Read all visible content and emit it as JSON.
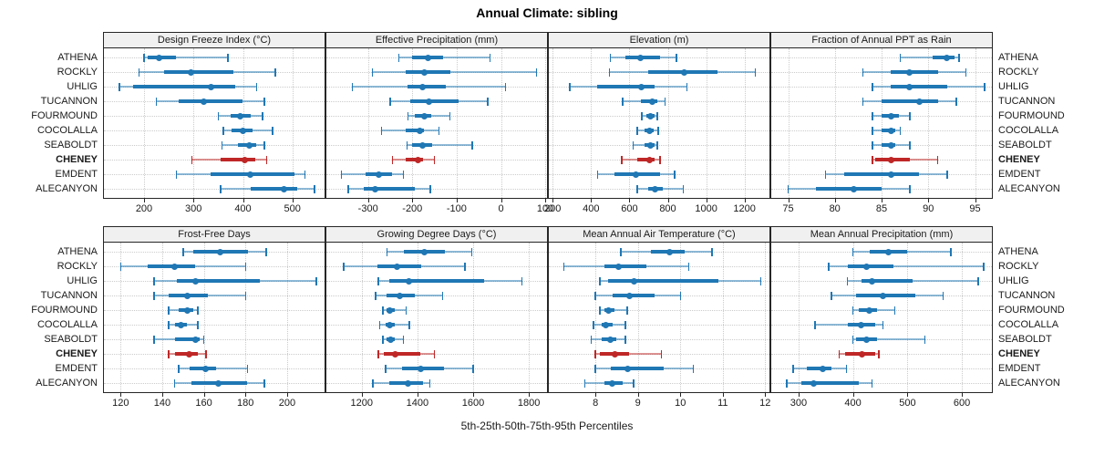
{
  "title": "Annual Climate: sibling",
  "caption": "5th-25th-50th-75th-95th Percentiles",
  "stations": [
    "ATHENA",
    "ROCKLY",
    "UHLIG",
    "TUCANNON",
    "FOURMOUND",
    "COCOLALLA",
    "SEABOLDT",
    "CHENEY",
    "EMDENT",
    "ALECANYON"
  ],
  "highlight_station": "CHENEY",
  "colors": {
    "series": "#1f77b4",
    "highlight": "#bf2727",
    "strip_bg": "#f0f0f0",
    "grid": "#cccccc",
    "border": "#262626",
    "text": "#1a1a1a"
  },
  "chart_data": {
    "type": "dot-whisker-percentile-trellis",
    "percentiles": [
      5,
      25,
      50,
      75,
      95
    ],
    "grid": "dotted",
    "legend": "none",
    "categories": [
      "ATHENA",
      "ROCKLY",
      "UHLIG",
      "TUCANNON",
      "FOURMOUND",
      "COCOLALLA",
      "SEABOLDT",
      "CHENEY",
      "EMDENT",
      "ALECANYON"
    ],
    "panels": [
      {
        "title": "Design Freeze Index (°C)",
        "xlim": [
          119,
          565
        ],
        "ticks": [
          200,
          300,
          400,
          500
        ],
        "series": [
          [
            200,
            207,
            230,
            265,
            370
          ],
          [
            190,
            240,
            295,
            380,
            465
          ],
          [
            150,
            178,
            335,
            385,
            428
          ],
          [
            225,
            270,
            320,
            400,
            443
          ],
          [
            350,
            375,
            395,
            415,
            440
          ],
          [
            360,
            377,
            400,
            420,
            460
          ],
          [
            358,
            390,
            413,
            427,
            443
          ],
          [
            297,
            355,
            403,
            425,
            448
          ],
          [
            265,
            335,
            415,
            505,
            525
          ],
          [
            355,
            415,
            483,
            510,
            545
          ]
        ]
      },
      {
        "title": "Effective Precipitation (mm)",
        "xlim": [
          -394,
          104
        ],
        "ticks": [
          -300,
          -200,
          -100,
          0,
          100
        ],
        "series": [
          [
            -230,
            -200,
            -165,
            -130,
            -25
          ],
          [
            -290,
            -215,
            -172,
            -115,
            80
          ],
          [
            -335,
            -210,
            -178,
            -125,
            10
          ],
          [
            -250,
            -205,
            -163,
            -95,
            -30
          ],
          [
            -210,
            -195,
            -172,
            -158,
            -115
          ],
          [
            -270,
            -215,
            -183,
            -173,
            -140
          ],
          [
            -212,
            -200,
            -178,
            -155,
            -65
          ],
          [
            -245,
            -215,
            -188,
            -175,
            -150
          ],
          [
            -360,
            -305,
            -275,
            -245,
            -220
          ],
          [
            -345,
            -310,
            -285,
            -195,
            -160
          ]
        ]
      },
      {
        "title": "Elevation (m)",
        "xlim": [
          180,
          1330
        ],
        "ticks": [
          200,
          400,
          600,
          800,
          1000,
          1200
        ],
        "series": [
          [
            500,
            580,
            655,
            760,
            845
          ],
          [
            495,
            700,
            885,
            1060,
            1255
          ],
          [
            290,
            430,
            660,
            730,
            900
          ],
          [
            565,
            660,
            720,
            745,
            785
          ],
          [
            665,
            690,
            710,
            730,
            745
          ],
          [
            640,
            680,
            705,
            725,
            750
          ],
          [
            620,
            680,
            710,
            730,
            745
          ],
          [
            560,
            640,
            705,
            730,
            760
          ],
          [
            435,
            520,
            635,
            760,
            835
          ],
          [
            640,
            700,
            735,
            775,
            880
          ]
        ]
      },
      {
        "title": "Fraction of Annual PPT as Rain",
        "xlim": [
          73.2,
          96.8
        ],
        "ticks": [
          75,
          80,
          85,
          90,
          95
        ],
        "series": [
          [
            87,
            90.5,
            92,
            92.8,
            93.3
          ],
          [
            83,
            86,
            88,
            91,
            94
          ],
          [
            84,
            86,
            88,
            92,
            96
          ],
          [
            83,
            85,
            89,
            91,
            93
          ],
          [
            84,
            85,
            86,
            86.8,
            88
          ],
          [
            84,
            85,
            86,
            86.5,
            87
          ],
          [
            84,
            85,
            86,
            86.5,
            88
          ],
          [
            84,
            84.3,
            86,
            88,
            91
          ],
          [
            79,
            81,
            86,
            89,
            92
          ],
          [
            75,
            78,
            82,
            85,
            88
          ]
        ]
      },
      {
        "title": "Frost-Free Days",
        "xlim": [
          112,
          218
        ],
        "ticks": [
          120,
          140,
          160,
          180,
          200
        ],
        "series": [
          [
            150,
            155,
            168,
            181,
            190
          ],
          [
            120,
            133,
            146,
            156,
            180
          ],
          [
            136,
            147,
            156,
            187,
            214
          ],
          [
            136,
            143,
            152,
            162,
            180
          ],
          [
            143,
            148,
            152,
            155,
            157
          ],
          [
            143,
            146,
            149,
            152,
            157
          ],
          [
            136,
            146,
            156,
            158,
            160
          ],
          [
            143,
            146,
            153,
            157,
            161
          ],
          [
            148,
            153,
            161,
            166,
            181
          ],
          [
            146,
            154,
            167,
            181,
            189
          ]
        ]
      },
      {
        "title": "Growing Degree Days (°C)",
        "xlim": [
          1073,
          1865
        ],
        "ticks": [
          1200,
          1400,
          1600,
          1800
        ],
        "series": [
          [
            1290,
            1350,
            1425,
            1500,
            1595
          ],
          [
            1135,
            1255,
            1325,
            1415,
            1570
          ],
          [
            1260,
            1300,
            1370,
            1640,
            1775
          ],
          [
            1250,
            1290,
            1335,
            1390,
            1490
          ],
          [
            1275,
            1290,
            1300,
            1320,
            1360
          ],
          [
            1265,
            1285,
            1300,
            1320,
            1370
          ],
          [
            1275,
            1290,
            1305,
            1320,
            1350
          ],
          [
            1260,
            1280,
            1320,
            1410,
            1460
          ],
          [
            1285,
            1345,
            1410,
            1495,
            1600
          ],
          [
            1240,
            1300,
            1365,
            1420,
            1445
          ]
        ]
      },
      {
        "title": "Mean Annual Air Temperature (°C)",
        "xlim": [
          6.9,
          12.1
        ],
        "ticks": [
          8,
          9,
          10,
          11,
          12
        ],
        "series": [
          [
            8.6,
            9.3,
            9.75,
            10.1,
            10.75
          ],
          [
            7.25,
            8.2,
            8.55,
            9.2,
            10.2
          ],
          [
            8.1,
            8.3,
            8.9,
            10.9,
            11.9
          ],
          [
            8.0,
            8.4,
            8.8,
            9.4,
            10.0
          ],
          [
            8.1,
            8.2,
            8.3,
            8.45,
            8.75
          ],
          [
            7.95,
            8.15,
            8.25,
            8.4,
            8.7
          ],
          [
            7.9,
            8.15,
            8.35,
            8.5,
            8.7
          ],
          [
            8.0,
            8.1,
            8.45,
            8.8,
            9.55
          ],
          [
            8.0,
            8.35,
            8.75,
            9.6,
            10.3
          ],
          [
            7.75,
            8.2,
            8.4,
            8.65,
            8.9
          ]
        ]
      },
      {
        "title": "Mean Annual Precipitation (mm)",
        "xlim": [
          250,
          655
        ],
        "ticks": [
          300,
          400,
          500,
          600
        ],
        "series": [
          [
            400,
            430,
            465,
            500,
            580
          ],
          [
            355,
            390,
            425,
            475,
            640
          ],
          [
            390,
            415,
            435,
            510,
            630
          ],
          [
            360,
            405,
            455,
            515,
            565
          ],
          [
            400,
            410,
            430,
            445,
            477
          ],
          [
            330,
            390,
            415,
            440,
            455
          ],
          [
            400,
            405,
            425,
            445,
            532
          ],
          [
            375,
            385,
            417,
            440,
            447
          ],
          [
            290,
            315,
            345,
            360,
            388
          ],
          [
            278,
            305,
            327,
            410,
            435
          ]
        ]
      }
    ]
  }
}
